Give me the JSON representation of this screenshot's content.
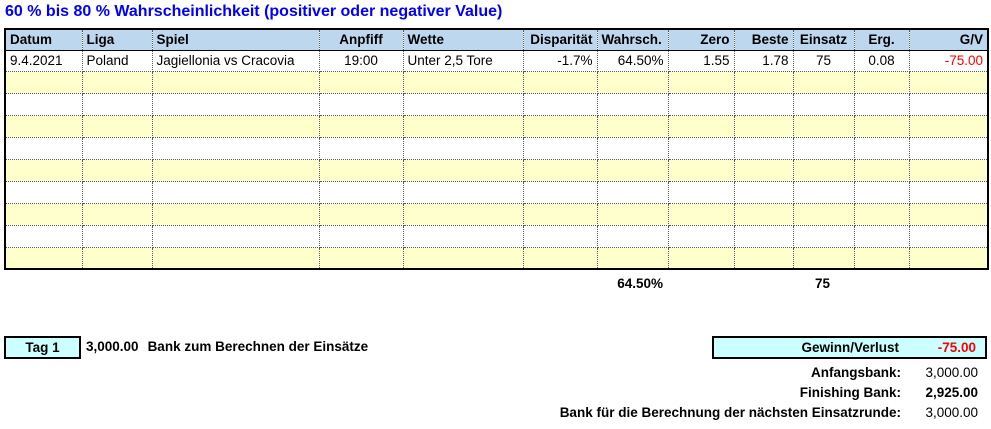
{
  "title": "60 % bis 80 % Wahrscheinlichkeit (positiver oder negativer Value)",
  "table": {
    "columns": [
      {
        "label": "Datum",
        "align": "left"
      },
      {
        "label": "Liga",
        "align": "left"
      },
      {
        "label": "Spiel",
        "align": "left"
      },
      {
        "label": "Anpfiff",
        "align": "center"
      },
      {
        "label": "Wette",
        "align": "left"
      },
      {
        "label": "Disparität",
        "align": "right"
      },
      {
        "label": "Wahrsch.",
        "align": "left"
      },
      {
        "label": "Zero",
        "align": "right"
      },
      {
        "label": "Beste",
        "align": "right"
      },
      {
        "label": "Einsatz",
        "align": "center"
      },
      {
        "label": "Erg.",
        "align": "center"
      },
      {
        "label": "G/V",
        "align": "right"
      }
    ],
    "row": {
      "datum": "9.4.2021",
      "liga": "Poland",
      "spiel": "Jagiellonia vs Cracovia",
      "anpfiff": "19:00",
      "wette": "Unter 2,5 Tore",
      "disparitaet": "-1.7%",
      "wahrsch": "64.50%",
      "zero": "1.55",
      "beste": "1.78",
      "einsatz": "75",
      "erg": "0.08",
      "gv": "-75.00"
    },
    "empty_row_count": 9,
    "totals": {
      "wahrsch": "64.50%",
      "einsatz": "75"
    }
  },
  "summary": {
    "tag_label": "Tag 1",
    "bank_value": "3,000.00",
    "bank_label": "Bank zum Berechnen der Einsätze",
    "gewinn_verlust_label": "Gewinn/Verlust",
    "gewinn_verlust_value": "-75.00",
    "rows": [
      {
        "label": "Anfangsbank:",
        "value": "3,000.00"
      },
      {
        "label": "Finishing Bank:",
        "value": "2,925.00"
      },
      {
        "label": "Bank für die Berechnung der nächsten Einsatzrunde:",
        "value": "3,000.00"
      }
    ]
  },
  "colors": {
    "title_blue": "#0000FF",
    "negative_red": "#FF0000",
    "header_fill": "#BDD7EE",
    "row_alt_fill": "#FFFFCC",
    "box_fill": "#CCFFFF"
  }
}
